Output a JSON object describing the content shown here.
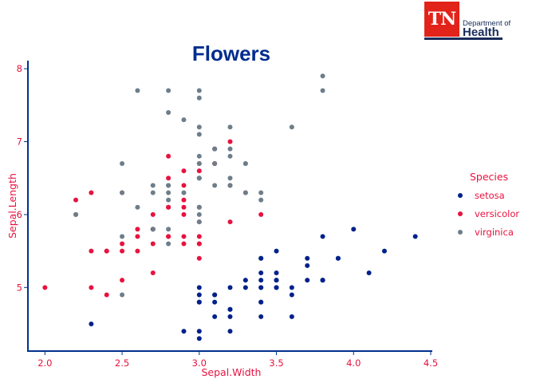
{
  "logo": {
    "abbr": "TN",
    "dept": "Department of",
    "name": "Health"
  },
  "colors": {
    "axis": "#00318e",
    "label": "#e8123f",
    "title": "#002c8f",
    "setosa": "#00218b",
    "versicolor": "#e8123f",
    "virginica": "#6c7e8a"
  },
  "chart_data": {
    "type": "scatter",
    "title": "Flowers",
    "xlabel": "Sepal.Width",
    "ylabel": "Sepal.Length",
    "xlim": [
      1.9,
      4.5
    ],
    "ylim": [
      4.15,
      8.1
    ],
    "xticks": [
      "2.0",
      "2.5",
      "3.0",
      "3.5",
      "4.0",
      "4.5"
    ],
    "yticks": [
      "5",
      "6",
      "7",
      "8"
    ],
    "legend": {
      "title": "Species",
      "position": "right"
    },
    "series": [
      {
        "name": "setosa",
        "points": [
          [
            3.5,
            5.1
          ],
          [
            3.0,
            4.9
          ],
          [
            3.2,
            4.7
          ],
          [
            3.1,
            4.6
          ],
          [
            3.6,
            5.0
          ],
          [
            3.9,
            5.4
          ],
          [
            3.4,
            4.6
          ],
          [
            3.4,
            5.0
          ],
          [
            2.9,
            4.4
          ],
          [
            3.1,
            4.9
          ],
          [
            3.7,
            5.4
          ],
          [
            3.4,
            4.8
          ],
          [
            3.0,
            4.8
          ],
          [
            3.0,
            4.3
          ],
          [
            4.0,
            5.8
          ],
          [
            4.4,
            5.7
          ],
          [
            3.9,
            5.4
          ],
          [
            3.5,
            5.1
          ],
          [
            3.8,
            5.7
          ],
          [
            3.8,
            5.1
          ],
          [
            3.4,
            5.4
          ],
          [
            3.7,
            5.1
          ],
          [
            3.6,
            4.6
          ],
          [
            3.3,
            5.1
          ],
          [
            3.4,
            4.8
          ],
          [
            3.0,
            5.0
          ],
          [
            3.4,
            5.0
          ],
          [
            3.5,
            5.2
          ],
          [
            3.4,
            5.2
          ],
          [
            3.2,
            4.7
          ],
          [
            3.1,
            4.8
          ],
          [
            3.4,
            5.4
          ],
          [
            4.1,
            5.2
          ],
          [
            4.2,
            5.5
          ],
          [
            3.1,
            4.9
          ],
          [
            3.2,
            5.0
          ],
          [
            3.5,
            5.5
          ],
          [
            3.6,
            4.9
          ],
          [
            3.0,
            4.4
          ],
          [
            3.4,
            5.1
          ],
          [
            3.5,
            5.0
          ],
          [
            2.3,
            4.5
          ],
          [
            3.2,
            4.4
          ],
          [
            3.5,
            5.0
          ],
          [
            3.8,
            5.1
          ],
          [
            3.0,
            4.8
          ],
          [
            3.8,
            5.1
          ],
          [
            3.2,
            4.6
          ],
          [
            3.7,
            5.3
          ],
          [
            3.3,
            5.0
          ]
        ]
      },
      {
        "name": "versicolor",
        "points": [
          [
            3.2,
            7.0
          ],
          [
            3.2,
            6.4
          ],
          [
            3.1,
            6.9
          ],
          [
            2.3,
            5.5
          ],
          [
            2.8,
            6.5
          ],
          [
            2.8,
            5.7
          ],
          [
            3.3,
            6.3
          ],
          [
            2.4,
            4.9
          ],
          [
            2.9,
            6.6
          ],
          [
            2.7,
            5.2
          ],
          [
            2.0,
            5.0
          ],
          [
            3.0,
            5.9
          ],
          [
            2.2,
            6.0
          ],
          [
            2.9,
            6.1
          ],
          [
            2.9,
            5.6
          ],
          [
            3.1,
            6.7
          ],
          [
            3.0,
            5.6
          ],
          [
            2.7,
            5.8
          ],
          [
            2.2,
            6.2
          ],
          [
            2.5,
            5.6
          ],
          [
            3.2,
            5.9
          ],
          [
            2.8,
            6.1
          ],
          [
            2.5,
            6.3
          ],
          [
            2.8,
            6.1
          ],
          [
            2.9,
            6.4
          ],
          [
            3.0,
            6.6
          ],
          [
            2.8,
            6.8
          ],
          [
            3.0,
            6.7
          ],
          [
            2.9,
            6.0
          ],
          [
            2.6,
            5.7
          ],
          [
            2.4,
            5.5
          ],
          [
            2.4,
            5.5
          ],
          [
            2.7,
            5.8
          ],
          [
            2.7,
            6.0
          ],
          [
            3.0,
            5.4
          ],
          [
            3.4,
            6.0
          ],
          [
            3.1,
            6.7
          ],
          [
            2.3,
            6.3
          ],
          [
            3.0,
            5.6
          ],
          [
            2.5,
            5.5
          ],
          [
            2.6,
            5.5
          ],
          [
            3.0,
            6.1
          ],
          [
            2.6,
            5.8
          ],
          [
            2.3,
            5.0
          ],
          [
            2.7,
            5.6
          ],
          [
            3.0,
            5.7
          ],
          [
            2.9,
            5.7
          ],
          [
            2.9,
            6.2
          ],
          [
            2.5,
            5.1
          ],
          [
            2.8,
            5.7
          ]
        ]
      },
      {
        "name": "virginica",
        "points": [
          [
            3.3,
            6.3
          ],
          [
            2.7,
            5.8
          ],
          [
            3.0,
            7.1
          ],
          [
            2.9,
            6.3
          ],
          [
            3.0,
            6.5
          ],
          [
            3.0,
            7.6
          ],
          [
            2.5,
            4.9
          ],
          [
            2.9,
            7.3
          ],
          [
            2.5,
            6.7
          ],
          [
            3.6,
            7.2
          ],
          [
            3.2,
            6.5
          ],
          [
            2.7,
            6.4
          ],
          [
            3.0,
            6.8
          ],
          [
            2.5,
            5.7
          ],
          [
            2.8,
            5.8
          ],
          [
            3.2,
            6.4
          ],
          [
            3.0,
            6.5
          ],
          [
            3.8,
            7.7
          ],
          [
            2.6,
            7.7
          ],
          [
            2.2,
            6.0
          ],
          [
            3.2,
            6.9
          ],
          [
            2.8,
            5.6
          ],
          [
            2.8,
            7.7
          ],
          [
            2.7,
            6.3
          ],
          [
            3.3,
            6.7
          ],
          [
            3.2,
            7.2
          ],
          [
            2.8,
            6.2
          ],
          [
            3.0,
            6.1
          ],
          [
            2.8,
            6.4
          ],
          [
            3.0,
            7.2
          ],
          [
            2.8,
            7.4
          ],
          [
            3.8,
            7.9
          ],
          [
            2.8,
            6.4
          ],
          [
            2.8,
            6.3
          ],
          [
            2.6,
            6.1
          ],
          [
            3.0,
            7.7
          ],
          [
            3.4,
            6.3
          ],
          [
            3.1,
            6.4
          ],
          [
            3.0,
            6.0
          ],
          [
            3.1,
            6.9
          ],
          [
            3.1,
            6.7
          ],
          [
            3.1,
            6.9
          ],
          [
            2.7,
            5.8
          ],
          [
            3.2,
            6.8
          ],
          [
            3.3,
            6.7
          ],
          [
            3.0,
            6.7
          ],
          [
            2.5,
            6.3
          ],
          [
            3.0,
            6.5
          ],
          [
            3.4,
            6.2
          ],
          [
            3.0,
            5.9
          ]
        ]
      }
    ]
  }
}
